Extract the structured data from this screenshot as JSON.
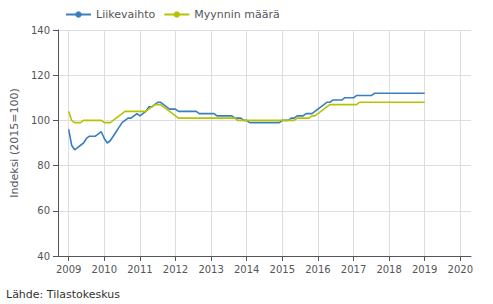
{
  "chart_data": {
    "type": "line",
    "ylabel": "Indeksi (2015=100)",
    "annotations": [
      "Lähde: Tilastokeskus"
    ],
    "x": [
      2009,
      2009.0833333333333,
      2009.1666666666667,
      2009.25,
      2009.3333333333333,
      2009.4166666666667,
      2009.5,
      2009.5833333333333,
      2009.6666666666667,
      2009.75,
      2009.8333333333333,
      2009.9166666666667,
      2010,
      2010.0833333333333,
      2010.1666666666667,
      2010.25,
      2010.3333333333333,
      2010.4166666666667,
      2010.5,
      2010.5833333333333,
      2010.6666666666667,
      2010.75,
      2010.8333333333333,
      2010.9166666666667,
      2011,
      2011.0833333333333,
      2011.1666666666667,
      2011.25,
      2011.3333333333333,
      2011.4166666666667,
      2011.5,
      2011.5833333333333,
      2011.6666666666667,
      2011.75,
      2011.8333333333333,
      2011.9166666666667,
      2012,
      2012.0833333333333,
      2012.1666666666667,
      2012.25,
      2012.3333333333333,
      2012.4166666666667,
      2012.5,
      2012.5833333333333,
      2012.6666666666667,
      2012.75,
      2012.8333333333333,
      2012.9166666666667,
      2013,
      2013.0833333333333,
      2013.1666666666667,
      2013.25,
      2013.3333333333333,
      2013.4166666666667,
      2013.5,
      2013.5833333333333,
      2013.6666666666667,
      2013.75,
      2013.8333333333333,
      2013.9166666666667,
      2014,
      2014.0833333333333,
      2014.1666666666667,
      2014.25,
      2014.3333333333333,
      2014.4166666666667,
      2014.5,
      2014.5833333333333,
      2014.6666666666667,
      2014.75,
      2014.8333333333333,
      2014.9166666666667,
      2015,
      2015.0833333333333,
      2015.1666666666667,
      2015.25,
      2015.3333333333333,
      2015.4166666666667,
      2015.5,
      2015.5833333333333,
      2015.6666666666667,
      2015.75,
      2015.8333333333333,
      2015.9166666666667,
      2016,
      2016.0833333333333,
      2016.1666666666667,
      2016.25,
      2016.3333333333333,
      2016.4166666666667,
      2016.5,
      2016.5833333333333,
      2016.6666666666667,
      2016.75,
      2016.8333333333333,
      2016.9166666666667,
      2017,
      2017.0833333333333,
      2017.1666666666667,
      2017.25,
      2017.3333333333333,
      2017.4166666666667,
      2017.5,
      2017.5833333333333,
      2017.6666666666667,
      2017.75,
      2017.8333333333333,
      2017.9166666666667,
      2018,
      2018.0833333333333,
      2018.1666666666667,
      2018.25,
      2018.3333333333333,
      2018.4166666666667,
      2018.5,
      2018.5833333333333,
      2018.6666666666667,
      2018.75,
      2018.8333333333333,
      2018.9166666666667,
      2019
    ],
    "series": [
      {
        "name": "Liikevaihto",
        "color": "#3a7ebf",
        "values": [
          96,
          89,
          87,
          88,
          89,
          90,
          92,
          93,
          93,
          93,
          94,
          95,
          92,
          90,
          91,
          93,
          95,
          97,
          99,
          100,
          101,
          101,
          102,
          103,
          102,
          103,
          104,
          106,
          106,
          107,
          108,
          108,
          107,
          106,
          105,
          105,
          105,
          104,
          104,
          104,
          104,
          104,
          104,
          104,
          103,
          103,
          103,
          103,
          103,
          103,
          102,
          102,
          102,
          102,
          102,
          102,
          101,
          101,
          101,
          100,
          100,
          99,
          99,
          99,
          99,
          99,
          99,
          99,
          99,
          99,
          99,
          99,
          100,
          100,
          100,
          101,
          101,
          102,
          102,
          102,
          103,
          103,
          103,
          104,
          105,
          106,
          107,
          108,
          108,
          109,
          109,
          109,
          109,
          110,
          110,
          110,
          110,
          111,
          111,
          111,
          111,
          111,
          111,
          112,
          112,
          112,
          112,
          112,
          112,
          112,
          112,
          112,
          112,
          112,
          112,
          112,
          112,
          112,
          112,
          112,
          112
        ]
      },
      {
        "name": "Myynnin määrä",
        "color": "#b5c400",
        "values": [
          104,
          100,
          99,
          99,
          99,
          100,
          100,
          100,
          100,
          100,
          100,
          100,
          99,
          99,
          99,
          100,
          101,
          102,
          103,
          104,
          104,
          104,
          104,
          104,
          104,
          104,
          104,
          105,
          106,
          107,
          107,
          107,
          106,
          105,
          104,
          103,
          102,
          101,
          101,
          101,
          101,
          101,
          101,
          101,
          101,
          101,
          101,
          101,
          101,
          101,
          101,
          101,
          101,
          101,
          101,
          101,
          101,
          100,
          100,
          100,
          100,
          100,
          100,
          100,
          100,
          100,
          100,
          100,
          100,
          100,
          100,
          100,
          100,
          100,
          100,
          100,
          100,
          101,
          101,
          101,
          101,
          101,
          102,
          102,
          103,
          104,
          105,
          106,
          107,
          107,
          107,
          107,
          107,
          107,
          107,
          107,
          107,
          107,
          108,
          108,
          108,
          108,
          108,
          108,
          108,
          108,
          108,
          108,
          108,
          108,
          108,
          108,
          108,
          108,
          108,
          108,
          108,
          108,
          108,
          108,
          108
        ]
      }
    ],
    "xlim": [
      2008.7,
      2020.3
    ],
    "xticks": [
      2009,
      2010,
      2011,
      2012,
      2013,
      2014,
      2015,
      2016,
      2017,
      2018,
      2019,
      2020
    ],
    "ylim": [
      40,
      140
    ],
    "yticks": [
      40,
      60,
      80,
      100,
      120,
      140
    ],
    "grid": true,
    "legend": "upper left"
  }
}
